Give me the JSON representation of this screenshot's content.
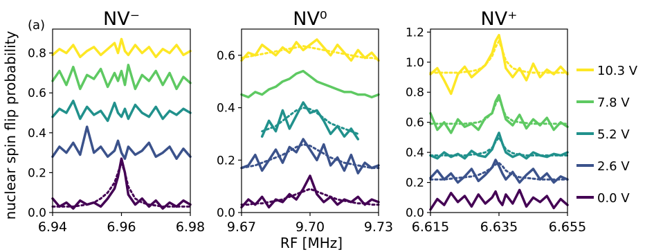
{
  "figure": {
    "panel_label": "(a)",
    "ylabel": "nuclear spin flip probability",
    "xlabel": "RF [MHz]"
  },
  "colors": {
    "0.0 V": "#440154",
    "2.6 V": "#3b528b",
    "5.2 V": "#21918c",
    "7.8 V": "#5ec962",
    "10.3 V": "#fde725"
  },
  "legend": {
    "placement": "right",
    "entries": [
      "10.3 V",
      "7.8 V",
      "5.2 V",
      "2.6 V",
      "0.0 V"
    ]
  },
  "chart_data": [
    {
      "type": "line",
      "title": "NV⁻",
      "xlim": [
        6.94,
        6.98
      ],
      "ylim": [
        0.0,
        0.92
      ],
      "xticks": [
        "6.94",
        "6.96",
        "6.98"
      ],
      "xtick_values": [
        6.94,
        6.96,
        6.98
      ],
      "yticks": [
        "0.0",
        "0.2",
        "0.4",
        "0.6",
        "0.8"
      ],
      "ytick_values": [
        0.0,
        0.2,
        0.4,
        0.6,
        0.8
      ],
      "x": [
        6.94,
        6.942,
        6.944,
        6.946,
        6.948,
        6.95,
        6.952,
        6.954,
        6.956,
        6.958,
        6.959,
        6.96,
        6.961,
        6.962,
        6.964,
        6.966,
        6.968,
        6.97,
        6.972,
        6.974,
        6.976,
        6.978,
        6.98
      ],
      "series": [
        {
          "name": "0.0 V",
          "values": [
            0.07,
            0.03,
            0.05,
            0.02,
            0.06,
            0.04,
            0.05,
            0.03,
            0.07,
            0.12,
            0.18,
            0.27,
            0.2,
            0.09,
            0.04,
            0.07,
            0.03,
            0.06,
            0.02,
            0.05,
            0.03,
            0.06,
            0.04
          ],
          "fit": [
            0.03,
            0.03,
            0.03,
            0.03,
            0.035,
            0.04,
            0.05,
            0.07,
            0.1,
            0.15,
            0.2,
            0.25,
            0.2,
            0.13,
            0.07,
            0.05,
            0.04,
            0.035,
            0.03,
            0.03,
            0.03,
            0.03,
            0.03
          ]
        },
        {
          "name": "2.6 V",
          "values": [
            0.28,
            0.33,
            0.3,
            0.35,
            0.29,
            0.43,
            0.3,
            0.33,
            0.28,
            0.31,
            0.36,
            0.3,
            0.27,
            0.33,
            0.29,
            0.31,
            0.35,
            0.28,
            0.3,
            0.33,
            0.27,
            0.32,
            0.28
          ]
        },
        {
          "name": "5.2 V",
          "values": [
            0.48,
            0.52,
            0.5,
            0.56,
            0.47,
            0.53,
            0.49,
            0.51,
            0.46,
            0.55,
            0.5,
            0.48,
            0.52,
            0.47,
            0.54,
            0.5,
            0.48,
            0.53,
            0.47,
            0.51,
            0.49,
            0.52,
            0.5
          ]
        },
        {
          "name": "7.8 V",
          "values": [
            0.66,
            0.71,
            0.64,
            0.73,
            0.62,
            0.69,
            0.67,
            0.72,
            0.63,
            0.7,
            0.66,
            0.71,
            0.64,
            0.74,
            0.62,
            0.69,
            0.66,
            0.71,
            0.64,
            0.7,
            0.62,
            0.68,
            0.65
          ]
        },
        {
          "name": "10.3 V",
          "values": [
            0.79,
            0.82,
            0.8,
            0.84,
            0.78,
            0.81,
            0.83,
            0.79,
            0.82,
            0.85,
            0.8,
            0.87,
            0.81,
            0.79,
            0.84,
            0.8,
            0.83,
            0.78,
            0.82,
            0.8,
            0.84,
            0.79,
            0.81
          ]
        }
      ]
    },
    {
      "type": "line",
      "title": "NV⁰",
      "xlim": [
        9.67,
        9.73
      ],
      "ylim": [
        0.0,
        0.7
      ],
      "xticks": [
        "9.67",
        "9.70",
        "9.73"
      ],
      "xtick_values": [
        9.67,
        9.7,
        9.73
      ],
      "yticks": [
        "0.0",
        "0.2",
        "0.4",
        "0.6"
      ],
      "ytick_values": [
        0.0,
        0.2,
        0.4,
        0.6
      ],
      "x": [
        9.67,
        9.673,
        9.676,
        9.679,
        9.682,
        9.685,
        9.688,
        9.691,
        9.694,
        9.697,
        9.7,
        9.703,
        9.706,
        9.709,
        9.712,
        9.715,
        9.718,
        9.721,
        9.724,
        9.727,
        9.73
      ],
      "series": [
        {
          "name": "0.0 V",
          "values": [
            0.02,
            0.05,
            0.03,
            0.06,
            0.02,
            0.05,
            0.04,
            0.07,
            0.05,
            0.09,
            0.14,
            0.07,
            0.04,
            0.06,
            0.03,
            0.05,
            0.04,
            0.06,
            0.03,
            0.05,
            0.04
          ],
          "fit": [
            0.03,
            0.03,
            0.035,
            0.035,
            0.04,
            0.045,
            0.05,
            0.06,
            0.07,
            0.08,
            0.09,
            0.08,
            0.07,
            0.06,
            0.05,
            0.045,
            0.04,
            0.035,
            0.035,
            0.03,
            0.03
          ]
        },
        {
          "name": "2.6 V",
          "values": [
            0.17,
            0.18,
            0.22,
            0.16,
            0.2,
            0.24,
            0.19,
            0.25,
            0.23,
            0.28,
            0.24,
            0.2,
            0.26,
            0.18,
            0.21,
            0.16,
            0.22,
            0.15,
            0.19,
            0.17,
            0.18
          ],
          "fit": [
            0.17,
            0.175,
            0.18,
            0.19,
            0.2,
            0.21,
            0.22,
            0.235,
            0.25,
            0.26,
            0.255,
            0.24,
            0.225,
            0.21,
            0.2,
            0.19,
            0.185,
            0.18,
            0.175,
            0.17,
            0.17
          ]
        },
        {
          "name": "5.2 V",
          "x": [
            9.679,
            9.682,
            9.685,
            9.688,
            9.691,
            9.694,
            9.697,
            9.7,
            9.703,
            9.706,
            9.709,
            9.712,
            9.715,
            9.718,
            9.721
          ],
          "values": [
            0.29,
            0.35,
            0.31,
            0.39,
            0.32,
            0.37,
            0.42,
            0.38,
            0.39,
            0.35,
            0.3,
            0.33,
            0.29,
            0.32,
            0.28
          ],
          "fit": [
            0.31,
            0.32,
            0.33,
            0.35,
            0.37,
            0.39,
            0.4,
            0.395,
            0.38,
            0.36,
            0.34,
            0.33,
            0.32,
            0.31,
            0.3
          ]
        },
        {
          "name": "7.8 V",
          "values": [
            0.45,
            0.44,
            0.46,
            0.45,
            0.47,
            0.48,
            0.5,
            0.51,
            0.53,
            0.54,
            0.52,
            0.5,
            0.49,
            0.48,
            0.47,
            0.46,
            0.46,
            0.45,
            0.45,
            0.44,
            0.45
          ]
        },
        {
          "name": "10.3 V",
          "values": [
            0.58,
            0.61,
            0.6,
            0.64,
            0.62,
            0.6,
            0.63,
            0.61,
            0.65,
            0.62,
            0.64,
            0.66,
            0.63,
            0.6,
            0.64,
            0.61,
            0.58,
            0.62,
            0.59,
            0.61,
            0.58
          ],
          "fit": [
            0.59,
            0.595,
            0.6,
            0.605,
            0.61,
            0.615,
            0.62,
            0.625,
            0.63,
            0.635,
            0.63,
            0.625,
            0.62,
            0.615,
            0.61,
            0.605,
            0.6,
            0.595,
            0.59,
            0.59,
            0.585
          ]
        }
      ]
    },
    {
      "type": "line",
      "title": "NV⁺",
      "xlim": [
        6.615,
        6.655
      ],
      "ylim": [
        0.0,
        1.22
      ],
      "xticks": [
        "6.615",
        "6.635",
        "6.655"
      ],
      "xtick_values": [
        6.615,
        6.635,
        6.655
      ],
      "yticks": [
        "0.0",
        "0.2",
        "0.4",
        "0.6",
        "0.8",
        "1.0",
        "1.2"
      ],
      "ytick_values": [
        0.0,
        0.2,
        0.4,
        0.6,
        0.8,
        1.0,
        1.2
      ],
      "x": [
        6.615,
        6.617,
        6.619,
        6.621,
        6.623,
        6.625,
        6.627,
        6.629,
        6.631,
        6.633,
        6.634,
        6.635,
        6.636,
        6.637,
        6.639,
        6.641,
        6.643,
        6.645,
        6.647,
        6.649,
        6.651,
        6.653,
        6.655
      ],
      "series": [
        {
          "name": "0.0 V",
          "values": [
            0.02,
            0.09,
            0.05,
            0.13,
            0.07,
            0.11,
            0.04,
            0.12,
            0.06,
            0.1,
            0.14,
            0.08,
            0.05,
            0.12,
            0.06,
            0.15,
            0.04,
            0.1,
            0.07,
            0.11,
            0.03,
            0.09,
            0.05
          ]
        },
        {
          "name": "2.6 V",
          "values": [
            0.23,
            0.28,
            0.22,
            0.26,
            0.2,
            0.24,
            0.29,
            0.21,
            0.25,
            0.3,
            0.35,
            0.31,
            0.26,
            0.22,
            0.27,
            0.2,
            0.25,
            0.29,
            0.22,
            0.26,
            0.2,
            0.24,
            0.22
          ],
          "fit": [
            0.22,
            0.22,
            0.22,
            0.225,
            0.23,
            0.235,
            0.24,
            0.25,
            0.27,
            0.3,
            0.32,
            0.33,
            0.31,
            0.28,
            0.25,
            0.235,
            0.23,
            0.225,
            0.22,
            0.22,
            0.22,
            0.22,
            0.22
          ]
        },
        {
          "name": "5.2 V",
          "values": [
            0.38,
            0.36,
            0.4,
            0.37,
            0.39,
            0.36,
            0.41,
            0.38,
            0.37,
            0.42,
            0.48,
            0.53,
            0.46,
            0.4,
            0.37,
            0.39,
            0.36,
            0.4,
            0.38,
            0.37,
            0.39,
            0.38,
            0.4
          ],
          "fit": [
            0.38,
            0.38,
            0.38,
            0.38,
            0.38,
            0.38,
            0.385,
            0.39,
            0.4,
            0.43,
            0.47,
            0.5,
            0.46,
            0.42,
            0.395,
            0.385,
            0.38,
            0.38,
            0.38,
            0.38,
            0.38,
            0.38,
            0.38
          ]
        },
        {
          "name": "7.8 V",
          "values": [
            0.66,
            0.55,
            0.6,
            0.53,
            0.62,
            0.57,
            0.59,
            0.55,
            0.63,
            0.66,
            0.74,
            0.78,
            0.7,
            0.62,
            0.58,
            0.65,
            0.56,
            0.62,
            0.58,
            0.63,
            0.55,
            0.6,
            0.57
          ],
          "fit": [
            0.59,
            0.59,
            0.59,
            0.59,
            0.59,
            0.59,
            0.595,
            0.6,
            0.62,
            0.66,
            0.72,
            0.76,
            0.7,
            0.64,
            0.61,
            0.6,
            0.595,
            0.59,
            0.59,
            0.59,
            0.59,
            0.59,
            0.59
          ]
        },
        {
          "name": "10.3 V",
          "values": [
            0.92,
            0.96,
            0.88,
            0.79,
            0.92,
            0.97,
            0.9,
            0.94,
            0.98,
            1.06,
            1.14,
            1.18,
            1.08,
            0.96,
            0.9,
            0.96,
            0.88,
            0.99,
            0.9,
            0.95,
            0.92,
            0.97,
            0.92
          ],
          "fit": [
            0.93,
            0.93,
            0.93,
            0.93,
            0.93,
            0.935,
            0.94,
            0.95,
            0.98,
            1.04,
            1.1,
            1.14,
            1.08,
            1.01,
            0.96,
            0.945,
            0.935,
            0.93,
            0.93,
            0.93,
            0.93,
            0.93,
            0.93
          ]
        }
      ]
    }
  ]
}
